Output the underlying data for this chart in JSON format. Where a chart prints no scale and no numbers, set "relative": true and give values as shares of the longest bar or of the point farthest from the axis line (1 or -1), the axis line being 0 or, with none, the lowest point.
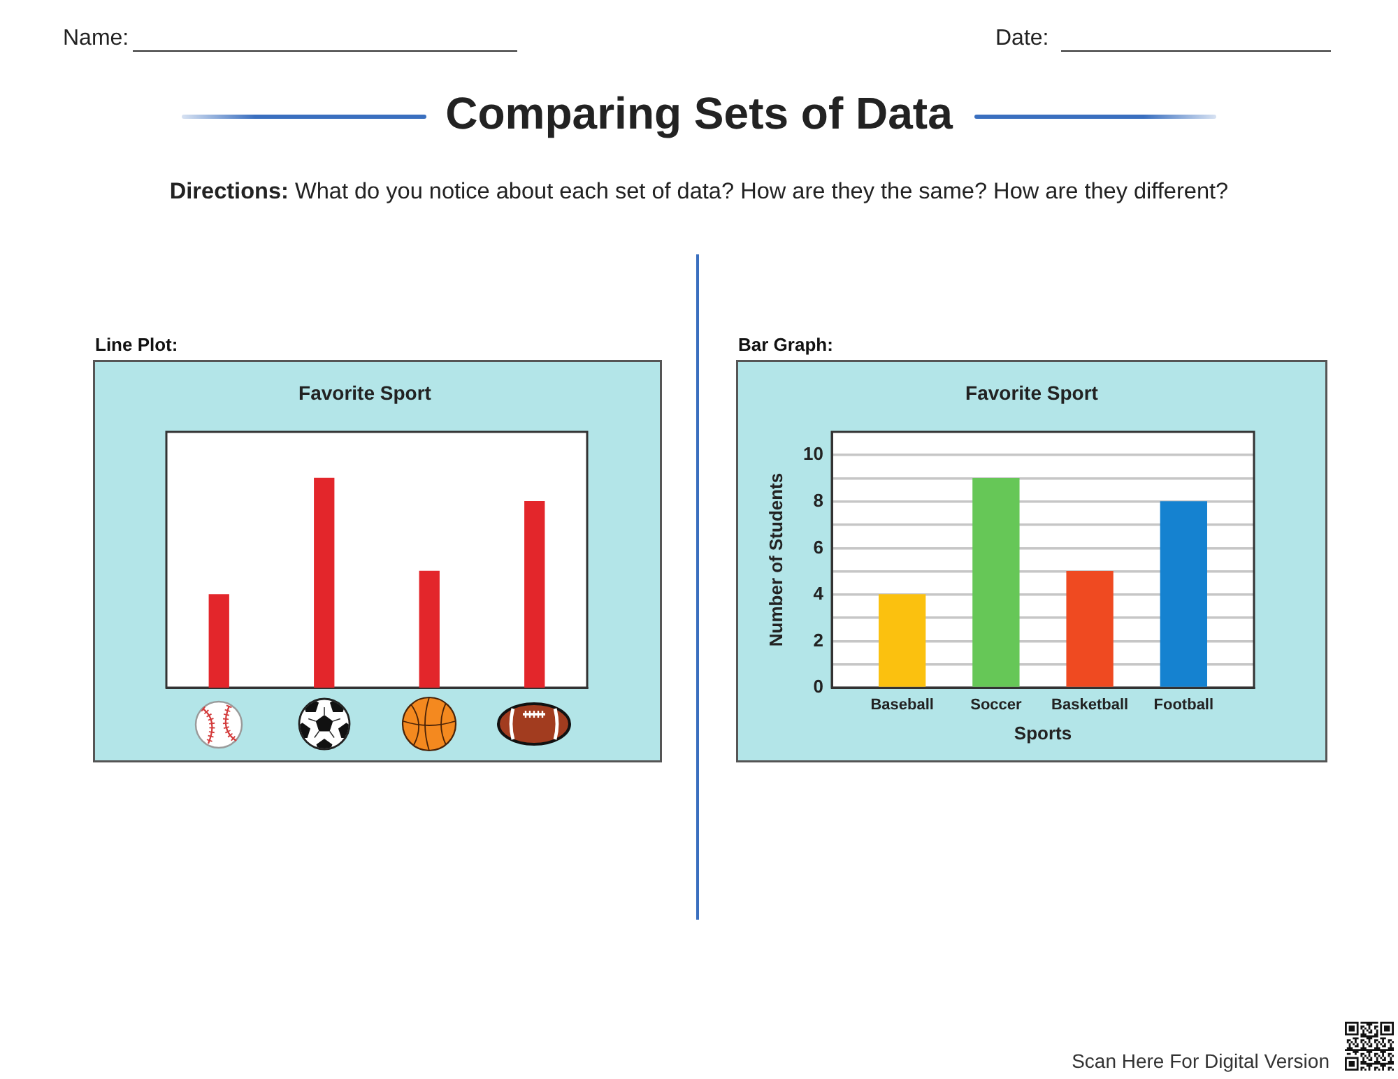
{
  "chart_data": [
    {
      "type": "other",
      "title": "Comparing Sets of Data",
      "annotations": [
        "Name:",
        "Date:",
        "Directions: What do you notice about each set of data? How are they the same? How are they different?",
        "Scan Here For Digital Version"
      ]
    },
    {
      "type": "bar",
      "title": "Favorite Sport",
      "annotations": [
        "Line Plot:"
      ],
      "relative": true,
      "categories": [
        null,
        null,
        null,
        null
      ],
      "values": [
        0.444,
        1,
        0.556,
        0.889
      ],
      "color": "#e3262b"
    },
    {
      "type": "bar",
      "title": "Favorite Sport",
      "annotations": [
        "Bar Graph:"
      ],
      "xlabel": "Sports",
      "ylabel": "Number of Students",
      "categories": [
        "Baseball",
        "Soccer",
        "Basketball",
        "Football"
      ],
      "values": [
        4,
        9,
        5,
        8
      ],
      "colors": [
        "#fbc10f",
        "#66c757",
        "#ef4a21",
        "#1582d0"
      ],
      "ylim": [
        0,
        11
      ],
      "yticks": [
        0,
        {
          "value": 1,
          "label": null
        },
        2,
        {
          "value": 3,
          "label": null
        },
        4,
        {
          "value": 5,
          "label": null
        },
        6,
        {
          "value": 7,
          "label": null
        },
        8,
        {
          "value": 9,
          "label": null
        },
        10
      ],
      "grid": "y"
    }
  ]
}
